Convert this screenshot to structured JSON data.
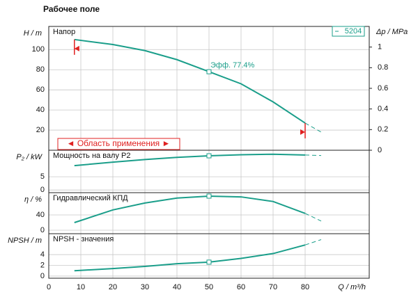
{
  "title": "Рабочее поле",
  "chart_data": [
    {
      "type": "line",
      "title": "Напор",
      "ylabel": "H / m",
      "y2label": "Δp / MPa",
      "x": [
        8,
        20,
        30,
        40,
        50,
        60,
        70,
        80,
        85
      ],
      "series": [
        {
          "name": "5204",
          "color": "#1a9e8a",
          "values": [
            110,
            105,
            99,
            90,
            78,
            66,
            48,
            27,
            null
          ]
        },
        {
          "color": "#1a9e8a",
          "dashed": true,
          "values": [
            null,
            null,
            null,
            null,
            null,
            null,
            null,
            27,
            18
          ]
        }
      ],
      "ylim": [
        0,
        123
      ],
      "yticks": [
        20,
        40,
        60,
        80,
        100
      ],
      "y2lim": [
        0,
        1.2
      ],
      "y2ticks": [
        0,
        0.2,
        0.4,
        0.6,
        0.8,
        1
      ],
      "duty_x": 50,
      "annotation": "Эфф. 77.4%",
      "limits": [
        8,
        80
      ],
      "limit_color": "#e02020",
      "region_label": "◄ Область применения ►"
    },
    {
      "type": "line",
      "title": "Мощность на валу P2",
      "ylabel": "P₂ / kW",
      "x": [
        8,
        20,
        30,
        40,
        50,
        60,
        70,
        80,
        85
      ],
      "series": [
        {
          "color": "#1a9e8a",
          "values": [
            9.2,
            10.5,
            11.5,
            12.3,
            12.9,
            13.3,
            13.5,
            13.2,
            null
          ]
        },
        {
          "color": "#1a9e8a",
          "dashed": true,
          "values": [
            null,
            null,
            null,
            null,
            null,
            null,
            null,
            13.2,
            13.0
          ]
        }
      ],
      "ylim": [
        -1,
        15
      ],
      "yticks": [
        0,
        5
      ],
      "duty_x": 50
    },
    {
      "type": "line",
      "title": "Гидравлический КПД",
      "ylabel": "η / %",
      "x": [
        8,
        20,
        30,
        40,
        50,
        60,
        70,
        80,
        85
      ],
      "series": [
        {
          "color": "#1a9e8a",
          "values": [
            20,
            53,
            71,
            84,
            89,
            87,
            75,
            44,
            null
          ]
        },
        {
          "color": "#1a9e8a",
          "dashed": true,
          "values": [
            null,
            null,
            null,
            null,
            null,
            null,
            null,
            44,
            24
          ]
        }
      ],
      "ylim": [
        -9,
        98
      ],
      "yticks": [
        0,
        40
      ],
      "duty_x": 50
    },
    {
      "type": "line",
      "title": "NPSH - значения",
      "ylabel": "NPSH / m",
      "xlabel": "Q / m³/h",
      "x": [
        8,
        20,
        30,
        40,
        50,
        60,
        70,
        80,
        85
      ],
      "series": [
        {
          "color": "#1a9e8a",
          "values": [
            1.0,
            1.4,
            1.8,
            2.3,
            2.6,
            3.3,
            4.2,
            5.8,
            null
          ]
        },
        {
          "color": "#1a9e8a",
          "dashed": true,
          "values": [
            null,
            null,
            null,
            null,
            null,
            null,
            null,
            5.8,
            6.8
          ]
        }
      ],
      "ylim": [
        -0.4,
        7.9
      ],
      "yticks": [
        0,
        2,
        4
      ],
      "duty_x": 50,
      "xlim": [
        0,
        100
      ],
      "xticks": [
        0,
        10,
        20,
        30,
        40,
        50,
        60,
        70,
        80
      ]
    }
  ]
}
